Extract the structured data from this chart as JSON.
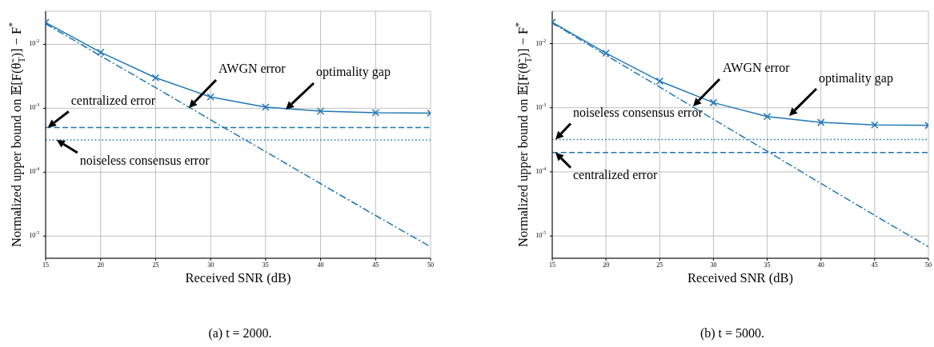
{
  "chart_data": [
    {
      "type": "line",
      "title": "(a)  t = 2000.",
      "xlabel": "Received SNR (dB)",
      "ylabel": "Normalized upper bound on 𝔼[F(θ̃$_{T}$)] − F$^{*}$",
      "log": true,
      "grid": true,
      "xlim": [
        15,
        50
      ],
      "xticks": [
        15,
        20,
        25,
        30,
        35,
        40,
        45,
        50
      ],
      "ylim": [
        4.5e-06,
        0.033
      ],
      "yticks": [
        {
          "value": 0.01,
          "label": "10$^{-2}$"
        },
        {
          "value": 0.001,
          "label": "10$^{-3}$"
        },
        {
          "value": 0.0001,
          "label": "10$^{-4}$"
        },
        {
          "value": 1e-05,
          "label": "10$^{-5}$"
        }
      ],
      "series": [
        {
          "color": "#1f77b4",
          "marker": "cross",
          "line_style": "solid",
          "x": [
            15,
            20,
            25,
            30,
            35,
            40,
            45,
            50
          ],
          "values": [
            0.022,
            0.0075,
            0.003,
            0.0015,
            0.00104,
            0.0009,
            0.00085,
            0.00084
          ]
        },
        {
          "color": "#1f77b4",
          "marker": "none",
          "line_style": "dashdot",
          "x": [
            15,
            20,
            25,
            30,
            35,
            40,
            45,
            50
          ],
          "values": [
            0.021,
            0.0066,
            0.0021,
            0.00066,
            0.00021,
            6.6e-05,
            2.1e-05,
            6.8e-06
          ]
        },
        {
          "color": "#1f77b4",
          "marker": "none",
          "line_style": "dashed",
          "x": [
            15,
            50
          ],
          "values": [
            0.0005,
            0.0005
          ]
        },
        {
          "color": "#1f77b4",
          "marker": "none",
          "line_style": "dotted",
          "x": [
            15,
            50
          ],
          "values": [
            0.00032,
            0.00032
          ]
        }
      ],
      "annotations": [
        "AWGN error",
        "optimality gap",
        {
          "text": "centralized error",
          "x": 15.2,
          "y": 0.0005
        },
        {
          "text": "noiseless consensus error",
          "x": 16,
          "y": 0.00032
        }
      ]
    },
    {
      "type": "line",
      "title": "(b)  t = 5000.",
      "xlabel": "Received SNR (dB)",
      "ylabel": "Normalized upper bound on 𝔼[F(θ̃$_{T}$)] − F$^{*}$",
      "log": true,
      "grid": true,
      "xlim": [
        15,
        50
      ],
      "xticks": [
        15,
        20,
        25,
        30,
        35,
        40,
        45,
        50
      ],
      "ylim": [
        4.5e-06,
        0.032
      ],
      "yticks": [
        {
          "value": 0.01,
          "label": "10$^{-2}$"
        },
        {
          "value": 0.001,
          "label": "10$^{-3}$"
        },
        {
          "value": 0.0001,
          "label": "10$^{-4}$"
        },
        {
          "value": 1e-05,
          "label": "10$^{-5}$"
        }
      ],
      "series": [
        {
          "color": "#1f77b4",
          "marker": "cross",
          "line_style": "solid",
          "x": [
            15,
            20,
            25,
            30,
            35,
            40,
            45,
            50
          ],
          "values": [
            0.0215,
            0.0071,
            0.0026,
            0.0012,
            0.00073,
            0.00059,
            0.00054,
            0.00053
          ]
        },
        {
          "color": "#1f77b4",
          "marker": "none",
          "line_style": "dashdot",
          "x": [
            15,
            20,
            25,
            30,
            35,
            40,
            45,
            50
          ],
          "values": [
            0.021,
            0.0066,
            0.0021,
            0.00066,
            0.00021,
            6.6e-05,
            2.1e-05,
            6.8e-06
          ]
        },
        {
          "color": "#1f77b4",
          "marker": "none",
          "line_style": "dashed",
          "x": [
            15,
            50
          ],
          "values": [
            0.0002,
            0.0002
          ]
        },
        {
          "color": "#1f77b4",
          "marker": "none",
          "line_style": "dotted",
          "x": [
            15,
            50
          ],
          "values": [
            0.00032,
            0.00032
          ]
        }
      ],
      "annotations": [
        "AWGN error",
        "optimality gap",
        {
          "text": "noiseless consensus error",
          "x": 15.3,
          "y": 0.00032
        },
        {
          "text": "centralized error",
          "x": 15.3,
          "y": 0.0002
        }
      ]
    }
  ]
}
